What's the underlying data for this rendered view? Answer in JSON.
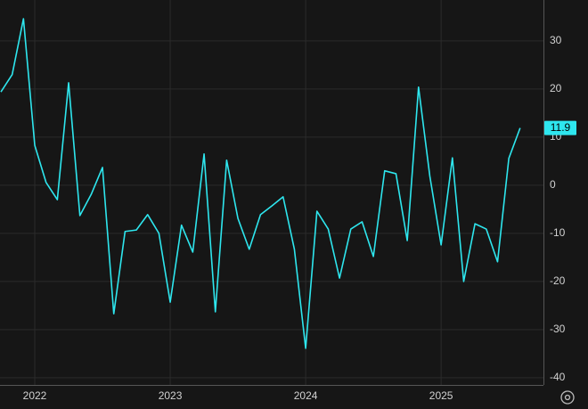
{
  "chart_data": {
    "type": "line",
    "categories": [
      null,
      null,
      null,
      "2022",
      null,
      null,
      null,
      null,
      null,
      null,
      null,
      null,
      null,
      null,
      null,
      "2023",
      null,
      null,
      null,
      null,
      null,
      null,
      null,
      null,
      null,
      null,
      null,
      "2024",
      null,
      null,
      null,
      null,
      null,
      null,
      null,
      null,
      null,
      null,
      null,
      "2025",
      null,
      null,
      null,
      null,
      null,
      null,
      null
    ],
    "series": [
      {
        "color": "#2ee6ee",
        "values": [
          19.4,
          23,
          34.6,
          8.3,
          0.6,
          -3,
          21.3,
          -6.3,
          -1.9,
          3.7,
          -26.7,
          -9.6,
          -9.3,
          -6.1,
          -10,
          -24.3,
          -8.3,
          -13.9,
          6.5,
          -26.3,
          5.2,
          -6.9,
          -13.3,
          -6.1,
          -4.3,
          -2.4,
          -13.3,
          -33.9,
          -5.4,
          -9.1,
          -19.3,
          -9.1,
          -7.6,
          -14.8,
          3,
          2.4,
          -11.5,
          20.4,
          1.9,
          -12.4,
          5.7,
          -20,
          -8,
          -9.1,
          -15.9,
          5.6,
          11.9
        ]
      }
    ],
    "ylim": [
      -41.5,
      38.5
    ],
    "yticks": [
      -40,
      -30,
      -20,
      -10,
      0,
      10,
      20,
      30
    ],
    "grid": true
  }
}
